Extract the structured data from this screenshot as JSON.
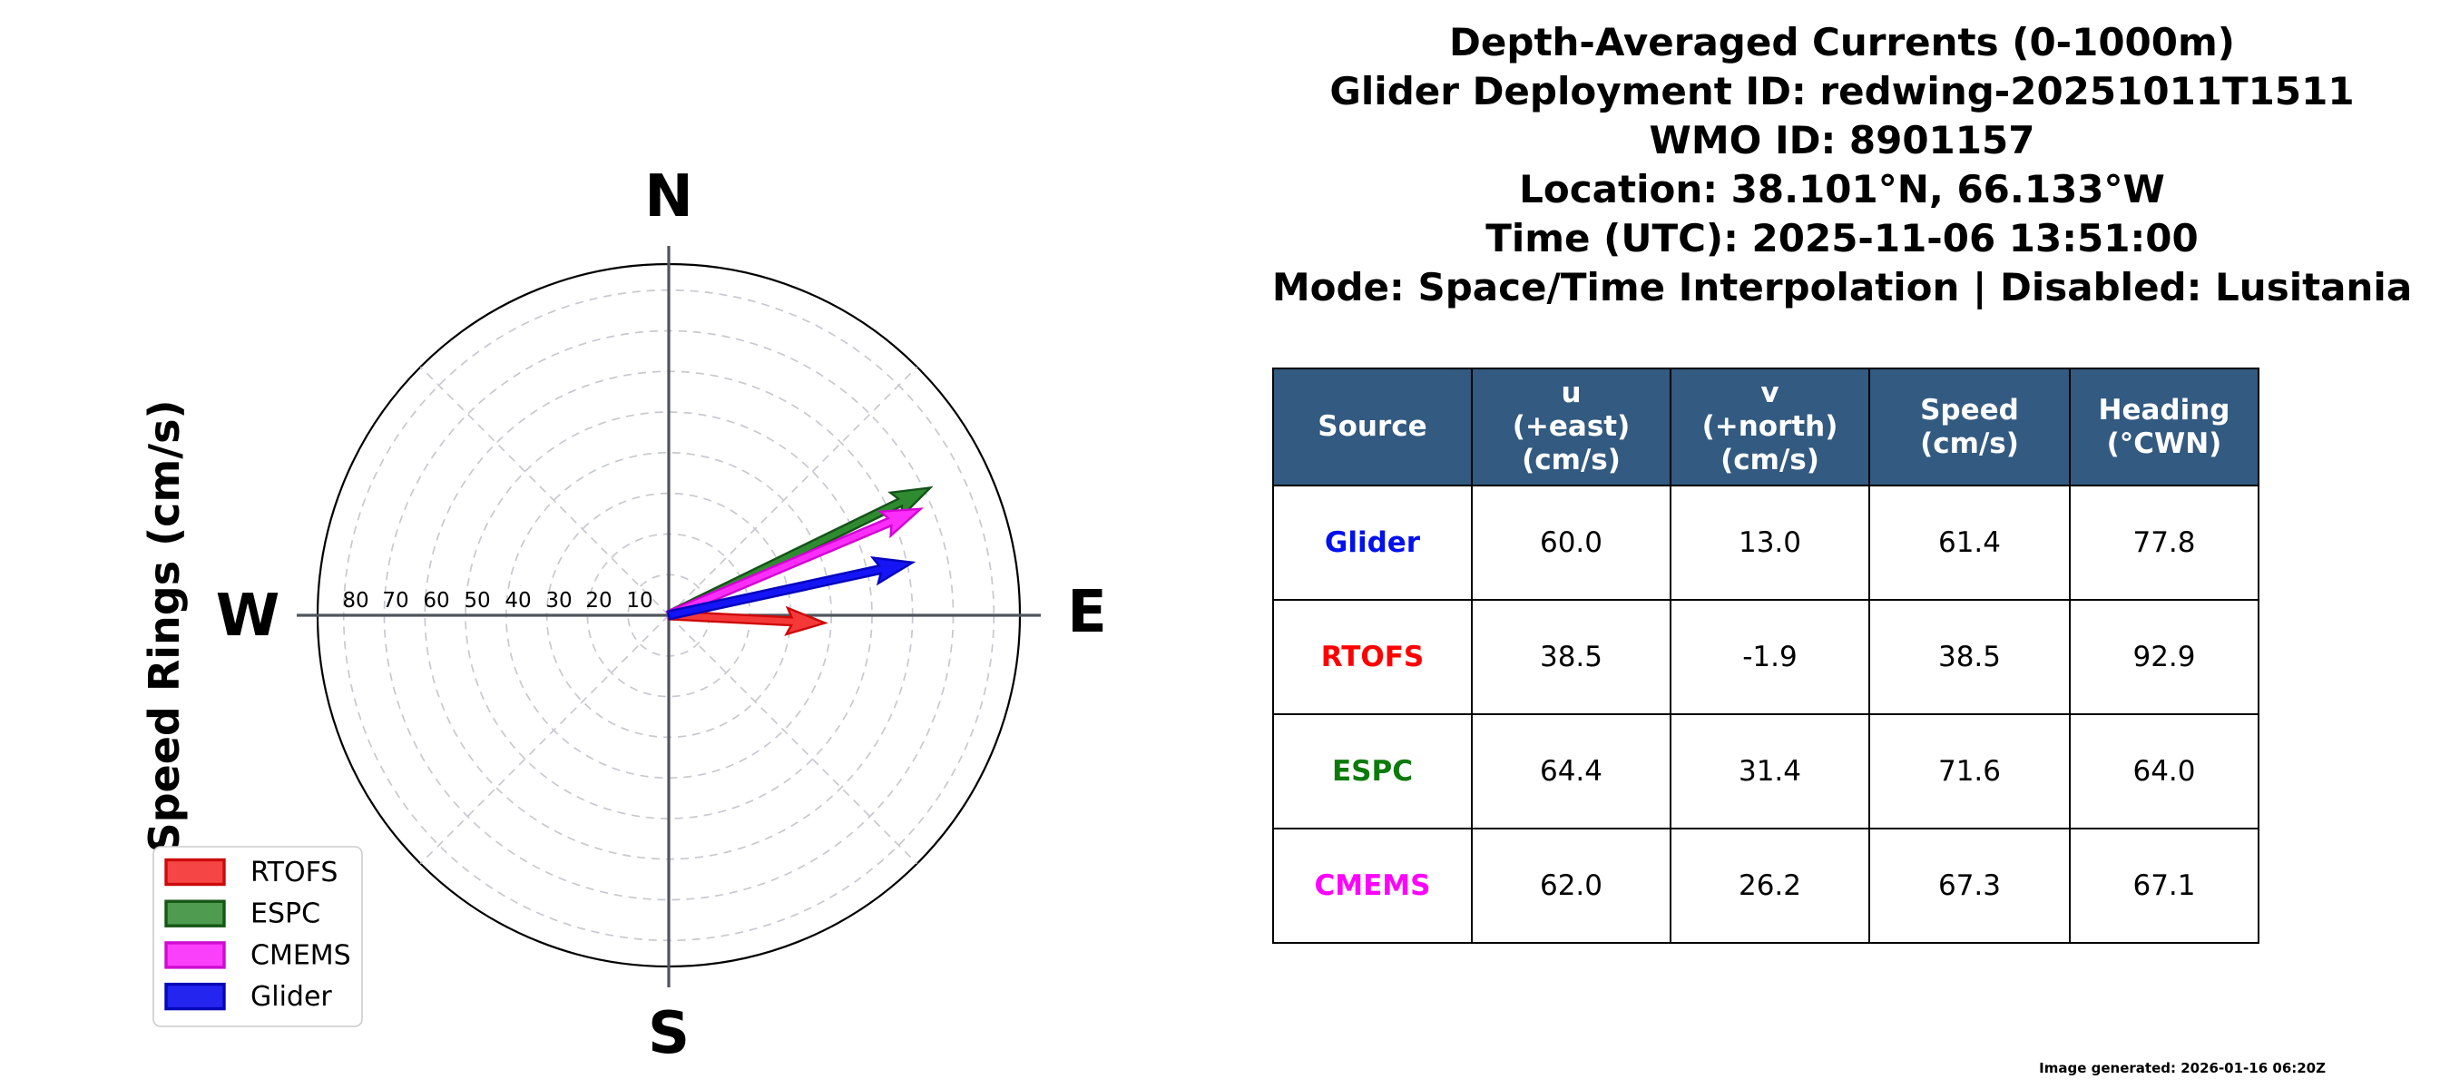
{
  "title_block": {
    "lines": [
      "Depth-Averaged Currents (0-1000m)",
      "Glider Deployment ID: redwing-20251011T1511",
      "WMO ID: 8901157",
      "Location: 38.101°N, 66.133°W",
      "Time (UTC): 2025-11-06 13:51:00",
      "Mode: Space/Time Interpolation | Disabled: Lusitania"
    ]
  },
  "chart_data": {
    "type": "polar_vector",
    "title": "Depth-Averaged Currents (0-1000m)",
    "radial_axis_label": "Speed Rings (cm/s)",
    "radial_ticks_cm_s": [
      10,
      20,
      30,
      40,
      50,
      60,
      70,
      80
    ],
    "radial_max_cm_s": 86.4,
    "compass_labels": {
      "north": "N",
      "east": "E",
      "south": "S",
      "west": "W"
    },
    "grid": {
      "rings": "dashed",
      "spokes_deg": [
        45,
        135,
        225,
        315
      ],
      "axes": "solid"
    },
    "legend_position": "lower-left",
    "series": [
      {
        "name": "RTOFS",
        "u_cm_s": 38.5,
        "v_cm_s": -1.9,
        "speed_cm_s": 38.5,
        "heading_deg_cwn": 92.9,
        "fill": "#f53838",
        "edge": "#ce0808"
      },
      {
        "name": "ESPC",
        "u_cm_s": 64.4,
        "v_cm_s": 31.4,
        "speed_cm_s": 71.6,
        "heading_deg_cwn": 64.0,
        "fill": "#2f8b30",
        "edge": "#155219"
      },
      {
        "name": "CMEMS",
        "u_cm_s": 62.0,
        "v_cm_s": 26.2,
        "speed_cm_s": 67.3,
        "heading_deg_cwn": 67.1,
        "fill": "#fc2efc",
        "edge": "#d303d3"
      },
      {
        "name": "Glider",
        "u_cm_s": 60.0,
        "v_cm_s": 13.0,
        "speed_cm_s": 61.4,
        "heading_deg_cwn": 77.8,
        "fill": "#1414f5",
        "edge": "#0505bd"
      }
    ]
  },
  "legend": {
    "items": [
      {
        "label": "RTOFS",
        "fill": "#f64545",
        "edge": "#cb0b0b"
      },
      {
        "label": "ESPC",
        "fill": "#4f9b50",
        "edge": "#145716"
      },
      {
        "label": "CMEMS",
        "fill": "#fb40fb",
        "edge": "#cf0ccf"
      },
      {
        "label": "Glider",
        "fill": "#2525f0",
        "edge": "#0707b8"
      }
    ]
  },
  "table": {
    "headers": [
      [
        "Source"
      ],
      [
        "u",
        "(+east)",
        "(cm/s)"
      ],
      [
        "v",
        "(+north)",
        "(cm/s)"
      ],
      [
        "Speed",
        "(cm/s)"
      ],
      [
        "Heading",
        "(°CWN)"
      ]
    ],
    "rows": [
      {
        "source": "Glider",
        "source_color": "#0010ee",
        "cells": [
          "60.0",
          "13.0",
          "61.4",
          "77.8"
        ]
      },
      {
        "source": "RTOFS",
        "source_color": "#fe0000",
        "cells": [
          "38.5",
          "-1.9",
          "38.5",
          "92.9"
        ]
      },
      {
        "source": "ESPC",
        "source_color": "#0b7a0b",
        "cells": [
          "64.4",
          "31.4",
          "71.6",
          "64.0"
        ]
      },
      {
        "source": "CMEMS",
        "source_color": "#ff00ff",
        "cells": [
          "62.0",
          "26.2",
          "67.3",
          "67.1"
        ]
      }
    ]
  },
  "footer": {
    "text": "Image generated: 2026-01-16 06:20Z"
  },
  "colors": {
    "table_header_bg": "#335a80",
    "table_header_text": "#ffffff",
    "axis": "#50545c",
    "grid": "#c7c9d1",
    "outer_ring": "#000000",
    "legend_border": "#cccccc"
  }
}
